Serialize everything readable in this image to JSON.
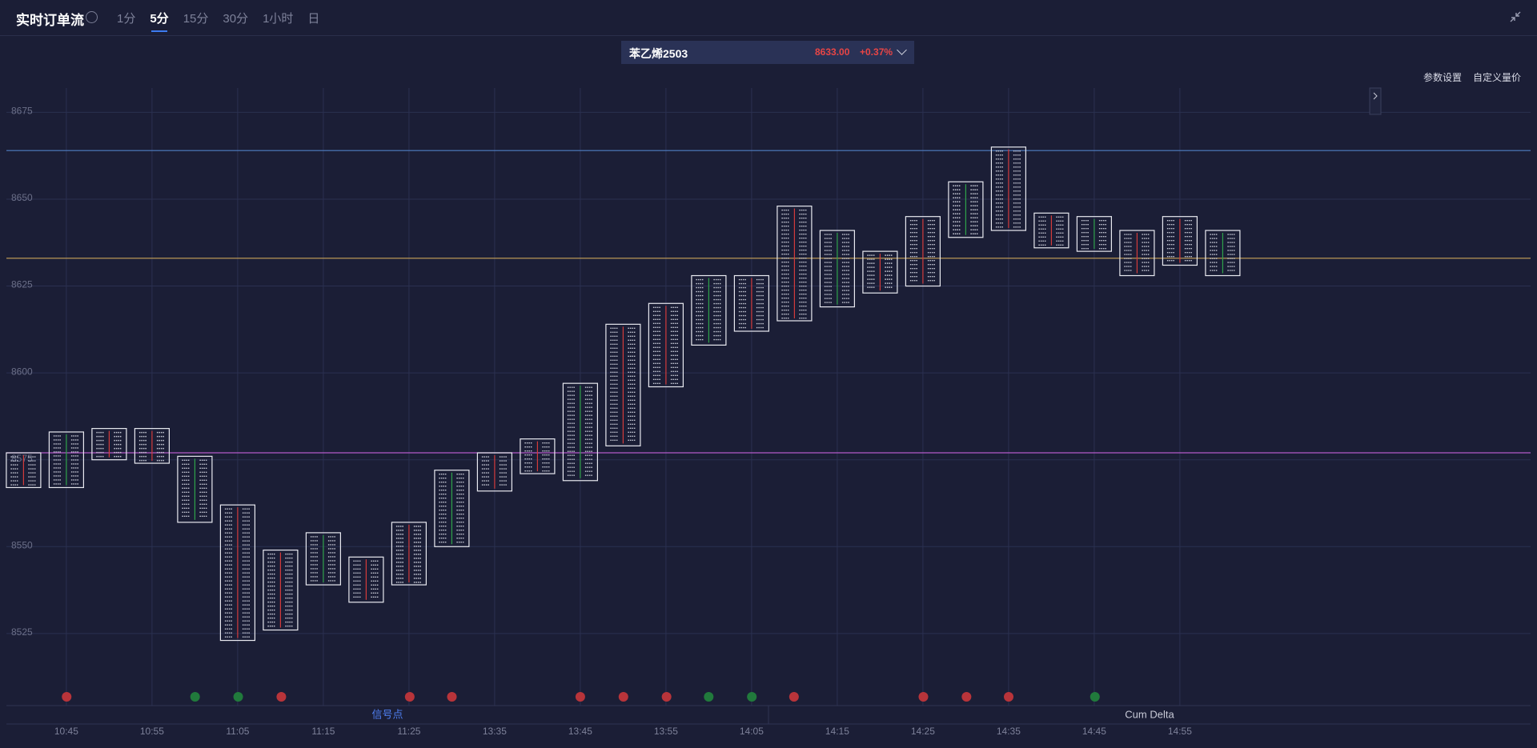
{
  "header": {
    "title": "实时订单流",
    "tabs": [
      "1分",
      "5分",
      "15分",
      "30分",
      "1小时",
      "日"
    ],
    "active_tab": 1
  },
  "symbol": {
    "name": "苯乙烯2503",
    "price": "8633.00",
    "change": "+0.37%"
  },
  "toolbar": [
    "参数设置",
    "自定义量价"
  ],
  "chart_data": {
    "type": "footprint",
    "categories": [
      null,
      "10:45",
      null,
      "10:55",
      null,
      "11:05",
      null,
      "11:15",
      null,
      "11:25",
      null,
      "13:35",
      null,
      "13:45",
      null,
      "13:55",
      null,
      "14:05",
      null,
      "14:15",
      null,
      "14:25",
      null,
      "14:35",
      null,
      "14:45",
      null,
      "14:55",
      null
    ],
    "high": [
      8577,
      8583,
      8584,
      8584,
      8576,
      8562,
      8549,
      8554,
      8547,
      8557,
      8572,
      8577,
      8581,
      8597,
      8614,
      8620,
      8628,
      8628,
      8648,
      8641,
      8635,
      8645,
      8655,
      8665,
      8646,
      8645,
      8641,
      8645,
      8641
    ],
    "low": [
      8567,
      8567,
      8575,
      8574,
      8557,
      8523,
      8526,
      8539,
      8534,
      8539,
      8550,
      8566,
      8571,
      8569,
      8579,
      8596,
      8608,
      8612,
      8615,
      8619,
      8623,
      8625,
      8639,
      8641,
      8636,
      8635,
      8628,
      8631,
      8628
    ],
    "levels": [
      {
        "value": 8664,
        "color": "#4f7fc4"
      },
      {
        "value": 8633,
        "color": "#c9a35a"
      },
      {
        "value": 8577,
        "color": "#b45ac8"
      }
    ],
    "ylim": [
      8510,
      8682
    ],
    "yticks": [
      8525,
      8550,
      8575,
      8600,
      8625,
      8650,
      8675
    ],
    "grid": true,
    "panels": [
      "信号点",
      "Cum Delta"
    ]
  }
}
